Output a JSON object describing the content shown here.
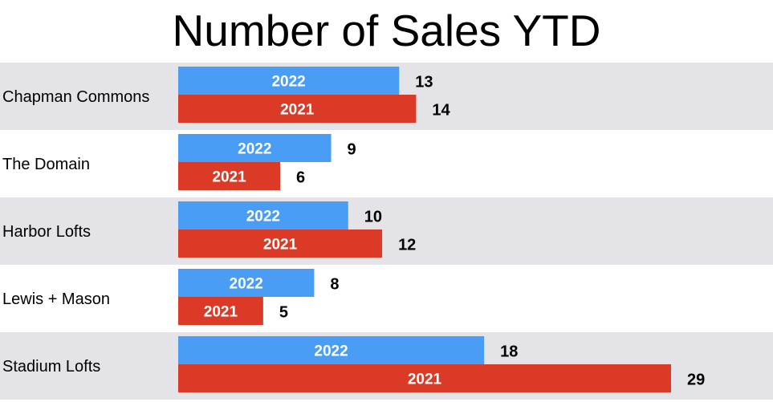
{
  "chart_data": {
    "type": "bar",
    "orientation": "horizontal",
    "title": "Number of Sales YTD",
    "categories": [
      "Chapman Commons",
      "The Domain",
      "Harbor Lofts",
      "Lewis + Mason",
      "Stadium Lofts"
    ],
    "series": [
      {
        "name": "2022",
        "values": [
          13,
          9,
          10,
          8,
          18
        ],
        "color": "#4a9df5"
      },
      {
        "name": "2021",
        "values": [
          14,
          6,
          12,
          5,
          29
        ],
        "color": "#db3a26"
      }
    ],
    "xlim": [
      0,
      29
    ],
    "legend": "none",
    "grid": false,
    "band_colors": [
      "#e4e4e8",
      "#ffffff"
    ]
  }
}
